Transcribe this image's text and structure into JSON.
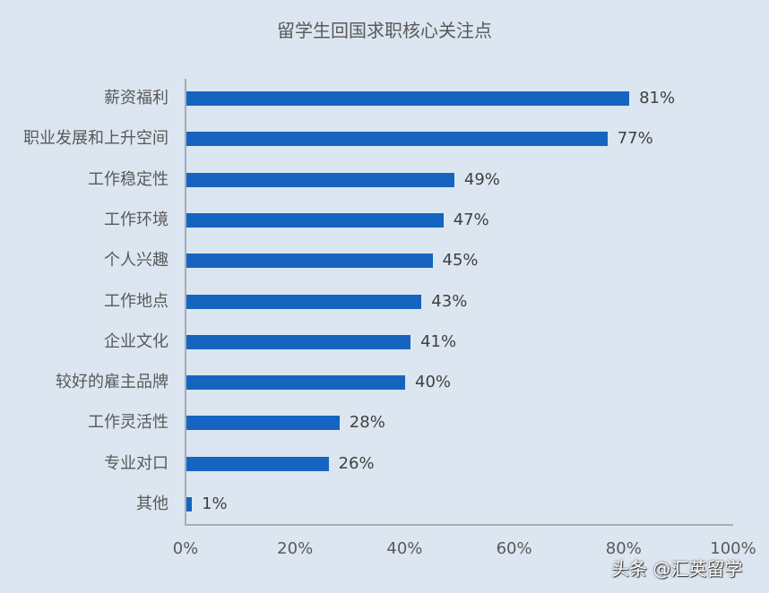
{
  "chart_data": {
    "type": "bar",
    "orientation": "horizontal",
    "title": "留学生回国求职核心关注点",
    "categories": [
      "薪资福利",
      "职业发展和上升空间",
      "工作稳定性",
      "工作环境",
      "个人兴趣",
      "工作地点",
      "企业文化",
      "较好的雇主品牌",
      "工作灵活性",
      "专业对口",
      "其他"
    ],
    "values": [
      81,
      77,
      49,
      47,
      45,
      43,
      41,
      40,
      28,
      26,
      1
    ],
    "value_labels": [
      "81%",
      "77%",
      "49%",
      "47%",
      "45%",
      "43%",
      "41%",
      "40%",
      "28%",
      "26%",
      "1%"
    ],
    "xlabel": "",
    "ylabel": "",
    "xlim": [
      0,
      100
    ],
    "x_ticks": [
      "0%",
      "20%",
      "40%",
      "60%",
      "80%",
      "100%"
    ],
    "grid": false,
    "legend": "none",
    "bar_color": "#1565c0"
  },
  "watermark": "头条 @汇英留学"
}
